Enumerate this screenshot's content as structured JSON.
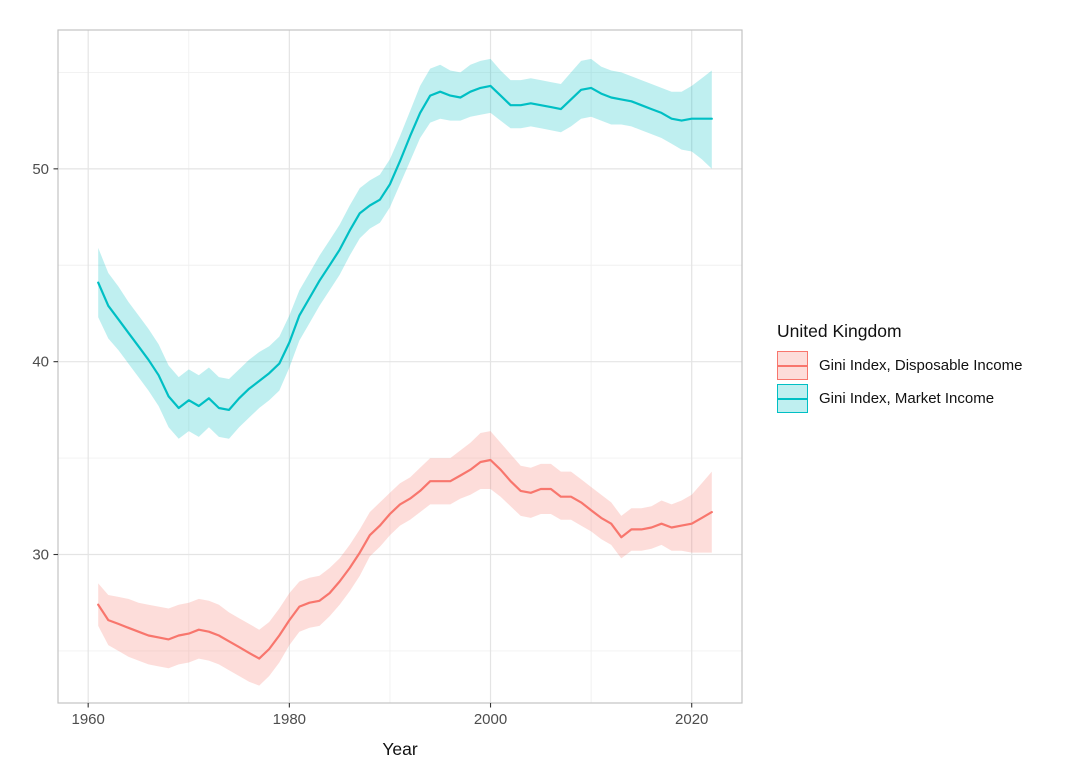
{
  "chart_data": {
    "type": "line",
    "title": "",
    "xlabel": "Year",
    "ylabel": "",
    "legend_title": "United Kingdom",
    "legend_position": "right",
    "grid": true,
    "x_domain": [
      1957,
      2025
    ],
    "y_domain": [
      22.3,
      57.2
    ],
    "x_ticks_major": [
      1960,
      1980,
      2000,
      2020
    ],
    "x_ticks_minor": [
      1970,
      1990,
      2010
    ],
    "y_ticks_major": [
      30,
      40,
      50
    ],
    "y_ticks_minor": [
      25,
      35,
      45,
      55
    ],
    "years": [
      1961,
      1962,
      1963,
      1964,
      1965,
      1966,
      1967,
      1968,
      1969,
      1970,
      1971,
      1972,
      1973,
      1974,
      1975,
      1976,
      1977,
      1978,
      1979,
      1980,
      1981,
      1982,
      1983,
      1984,
      1985,
      1986,
      1987,
      1988,
      1989,
      1990,
      1991,
      1992,
      1993,
      1994,
      1995,
      1996,
      1997,
      1998,
      1999,
      2000,
      2001,
      2002,
      2003,
      2004,
      2005,
      2006,
      2007,
      2008,
      2009,
      2010,
      2011,
      2012,
      2013,
      2014,
      2015,
      2016,
      2017,
      2018,
      2019,
      2020,
      2021,
      2022
    ],
    "series": [
      {
        "name": "Gini Index, Disposable Income",
        "color": "#F8766D",
        "band_color": "rgba(248,118,109,0.25)",
        "values": [
          27.4,
          26.6,
          26.4,
          26.2,
          26.0,
          25.8,
          25.7,
          25.6,
          25.8,
          25.9,
          26.1,
          26.0,
          25.8,
          25.5,
          25.2,
          24.9,
          24.6,
          25.1,
          25.8,
          26.6,
          27.3,
          27.5,
          27.6,
          28.0,
          28.6,
          29.3,
          30.1,
          31.0,
          31.5,
          32.1,
          32.6,
          32.9,
          33.3,
          33.8,
          33.8,
          33.8,
          34.1,
          34.4,
          34.8,
          34.9,
          34.4,
          33.8,
          33.3,
          33.2,
          33.4,
          33.4,
          33.0,
          33.0,
          32.7,
          32.3,
          31.9,
          31.6,
          30.9,
          31.3,
          31.3,
          31.4,
          31.6,
          31.4,
          31.5,
          31.6,
          31.9,
          32.2
        ],
        "lower": [
          26.3,
          25.3,
          25.0,
          24.7,
          24.5,
          24.3,
          24.2,
          24.1,
          24.3,
          24.4,
          24.6,
          24.5,
          24.3,
          24.0,
          23.7,
          23.4,
          23.2,
          23.7,
          24.4,
          25.3,
          26.0,
          26.2,
          26.3,
          26.8,
          27.4,
          28.1,
          28.9,
          29.9,
          30.4,
          31.0,
          31.5,
          31.8,
          32.2,
          32.6,
          32.6,
          32.6,
          32.9,
          33.1,
          33.4,
          33.4,
          33.0,
          32.5,
          32.0,
          31.9,
          32.1,
          32.1,
          31.8,
          31.8,
          31.5,
          31.2,
          30.8,
          30.5,
          29.8,
          30.2,
          30.2,
          30.3,
          30.5,
          30.2,
          30.2,
          30.1,
          30.1,
          30.1
        ],
        "upper": [
          28.5,
          27.9,
          27.8,
          27.7,
          27.5,
          27.4,
          27.3,
          27.2,
          27.4,
          27.5,
          27.7,
          27.6,
          27.4,
          27.0,
          26.7,
          26.4,
          26.1,
          26.5,
          27.2,
          28.0,
          28.6,
          28.8,
          28.9,
          29.3,
          29.8,
          30.5,
          31.3,
          32.2,
          32.7,
          33.2,
          33.7,
          34.0,
          34.5,
          35.0,
          35.0,
          35.0,
          35.4,
          35.8,
          36.3,
          36.4,
          35.8,
          35.2,
          34.6,
          34.5,
          34.7,
          34.7,
          34.3,
          34.3,
          33.9,
          33.5,
          33.1,
          32.7,
          32.0,
          32.4,
          32.4,
          32.5,
          32.8,
          32.6,
          32.8,
          33.1,
          33.7,
          34.3
        ]
      },
      {
        "name": "Gini Index, Market Income",
        "color": "#00BFC4",
        "band_color": "rgba(0,191,196,0.25)",
        "values": [
          44.1,
          42.9,
          42.2,
          41.5,
          40.8,
          40.1,
          39.3,
          38.2,
          37.6,
          38.0,
          37.7,
          38.1,
          37.6,
          37.5,
          38.1,
          38.6,
          39.0,
          39.4,
          39.9,
          41.0,
          42.4,
          43.3,
          44.2,
          45.0,
          45.8,
          46.8,
          47.7,
          48.1,
          48.4,
          49.2,
          50.4,
          51.7,
          52.9,
          53.8,
          54.0,
          53.8,
          53.7,
          54.0,
          54.2,
          54.3,
          53.8,
          53.3,
          53.3,
          53.4,
          53.3,
          53.2,
          53.1,
          53.6,
          54.1,
          54.2,
          53.9,
          53.7,
          53.6,
          53.5,
          53.3,
          53.1,
          52.9,
          52.6,
          52.5,
          52.6,
          52.6,
          52.6
        ],
        "lower": [
          42.3,
          41.2,
          40.6,
          39.9,
          39.2,
          38.5,
          37.7,
          36.6,
          36.0,
          36.4,
          36.1,
          36.6,
          36.1,
          36.0,
          36.6,
          37.1,
          37.6,
          38.0,
          38.5,
          39.7,
          41.1,
          42.0,
          42.9,
          43.7,
          44.5,
          45.5,
          46.4,
          46.9,
          47.2,
          48.0,
          49.2,
          50.4,
          51.6,
          52.4,
          52.6,
          52.5,
          52.5,
          52.7,
          52.8,
          52.9,
          52.5,
          52.1,
          52.1,
          52.2,
          52.1,
          52.0,
          51.9,
          52.2,
          52.6,
          52.7,
          52.5,
          52.3,
          52.3,
          52.2,
          52.0,
          51.8,
          51.6,
          51.3,
          51.0,
          50.9,
          50.5,
          50.0
        ],
        "upper": [
          45.9,
          44.6,
          43.9,
          43.1,
          42.4,
          41.7,
          40.9,
          39.8,
          39.2,
          39.6,
          39.3,
          39.7,
          39.2,
          39.1,
          39.6,
          40.1,
          40.5,
          40.8,
          41.3,
          42.4,
          43.7,
          44.6,
          45.5,
          46.3,
          47.1,
          48.1,
          49.0,
          49.4,
          49.7,
          50.5,
          51.7,
          53.0,
          54.3,
          55.2,
          55.4,
          55.1,
          55.0,
          55.4,
          55.6,
          55.7,
          55.1,
          54.6,
          54.6,
          54.7,
          54.6,
          54.5,
          54.4,
          55.0,
          55.6,
          55.7,
          55.3,
          55.1,
          55.0,
          54.8,
          54.6,
          54.4,
          54.2,
          54.0,
          54.0,
          54.3,
          54.7,
          55.1
        ]
      }
    ]
  }
}
